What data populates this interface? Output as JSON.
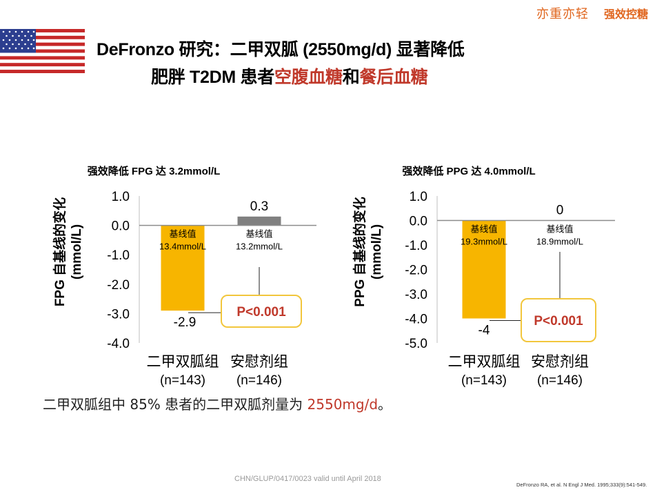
{
  "brand": {
    "slogan": "亦重亦轻",
    "tagline": "强效控糖"
  },
  "title": {
    "line1": "DeFronzo 研究：二甲双胍 (2550mg/d) 显著降低",
    "line2_prefix": "肥胖 T2DM 患者",
    "line2_fpg": "空腹血糖",
    "line2_and": "和",
    "line2_ppg": "餐后血糖"
  },
  "colors": {
    "accent_red": "#c0392b",
    "metformin_bar": "#f7b500",
    "placebo_bar": "#808080",
    "pvalue_border": "#f2c63c",
    "brand_orange": "#e0661f"
  },
  "chart_data": [
    {
      "type": "bar",
      "title": "强效降低 FPG 达 3.2mmol/L",
      "ylabel": "FPG 自基线的变化 (mmol/L)",
      "ylabel_line1": "FPG 自基线的变化",
      "ylabel_line2": "(mmol/L)",
      "ylim": [
        -4.0,
        1.0
      ],
      "yticks": [
        1.0,
        0.0,
        -1.0,
        -2.0,
        -3.0,
        -4.0
      ],
      "ytick_labels": [
        "1.0",
        "0.0",
        "-1.0",
        "-2.0",
        "-3.0",
        "-4.0"
      ],
      "categories": [
        "二甲双胍组",
        "安慰剂组"
      ],
      "sample_sizes": [
        "(n=143)",
        "(n=146)"
      ],
      "values": [
        -2.9,
        0.3
      ],
      "value_labels": [
        "-2.9",
        "0.3"
      ],
      "baseline_title": "基线值",
      "baselines": [
        "13.4mmol/L",
        "13.2mmol/L"
      ],
      "p_value": "P<0.001"
    },
    {
      "type": "bar",
      "title": "强效降低 PPG 达 4.0mmol/L",
      "ylabel": "PPG 自基线的变化 (mmol/L)",
      "ylabel_line1": "PPG 自基线的变化",
      "ylabel_line2": "(mmol/L)",
      "ylim": [
        -5.0,
        1.0
      ],
      "yticks": [
        1.0,
        0.0,
        -1.0,
        -2.0,
        -3.0,
        -4.0,
        -5.0
      ],
      "ytick_labels": [
        "1.0",
        "0.0",
        "-1.0",
        "-2.0",
        "-3.0",
        "-4.0",
        "-5.0"
      ],
      "categories": [
        "二甲双胍组",
        "安慰剂组"
      ],
      "sample_sizes": [
        "(n=143)",
        "(n=146)"
      ],
      "values": [
        -4.0,
        0
      ],
      "value_labels": [
        "-4",
        "0"
      ],
      "baseline_title": "基线值",
      "baselines": [
        "19.3mmol/L",
        "18.9mmol/L"
      ],
      "p_value": "P<0.001"
    }
  ],
  "note": {
    "prefix": "二甲双胍组中 85% 患者的二甲双胍剂量为 ",
    "dose": "2550mg/d",
    "suffix": "。"
  },
  "footer": {
    "code": "CHN/GLUP/0417/0023 valid until April 2018",
    "reference": "DeFronzo RA, et al. N Engl J Med. 1995;333(9):541-549."
  }
}
